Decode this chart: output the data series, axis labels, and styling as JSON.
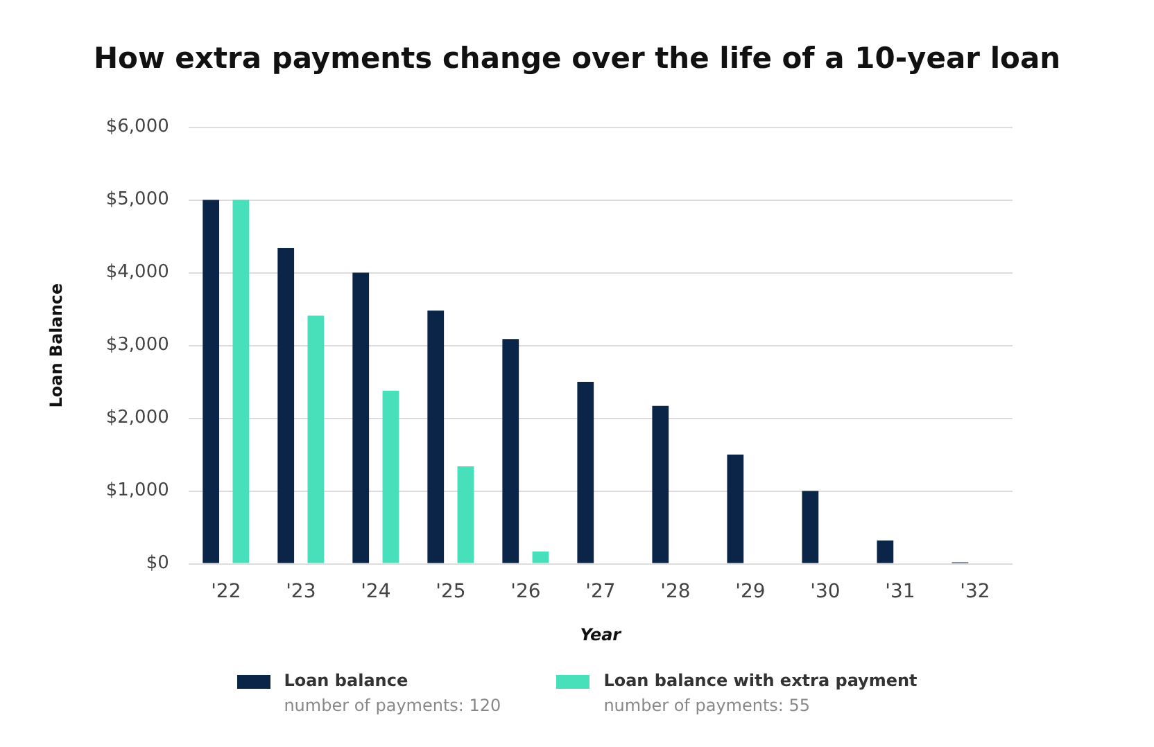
{
  "chart_data": {
    "type": "bar",
    "title": "How extra payments change over the life of a 10-year loan",
    "xlabel": "Year",
    "ylabel": "Loan Balance",
    "categories": [
      "'22",
      "'23",
      "'24",
      "'25",
      "'26",
      "'27",
      "'28",
      "'29",
      "'30",
      "'31",
      "'32"
    ],
    "series": [
      {
        "name": "Loan balance",
        "color": "#0a2548",
        "values": [
          5000,
          4340,
          4000,
          3480,
          3090,
          2500,
          2170,
          1500,
          1000,
          320,
          20
        ]
      },
      {
        "name": "Loan balance with extra payment",
        "color": "#48dfbb",
        "values": [
          5000,
          3410,
          2380,
          1340,
          170,
          0,
          0,
          0,
          0,
          0,
          0
        ]
      }
    ],
    "annotations": [
      "number of payments: 120",
      "number of payments: 55"
    ],
    "ylim": [
      0,
      6000
    ],
    "yticks": [
      {
        "value": 0,
        "label": "$0"
      },
      {
        "value": 1000,
        "label": "$1,000"
      },
      {
        "value": 2000,
        "label": "$2,000"
      },
      {
        "value": 3000,
        "label": "$3,000"
      },
      {
        "value": 4000,
        "label": "$4,000"
      },
      {
        "value": 5000,
        "label": "$5,000"
      },
      {
        "value": 6000,
        "label": "$6,000"
      }
    ],
    "grid": "y",
    "legend": "bottom"
  }
}
